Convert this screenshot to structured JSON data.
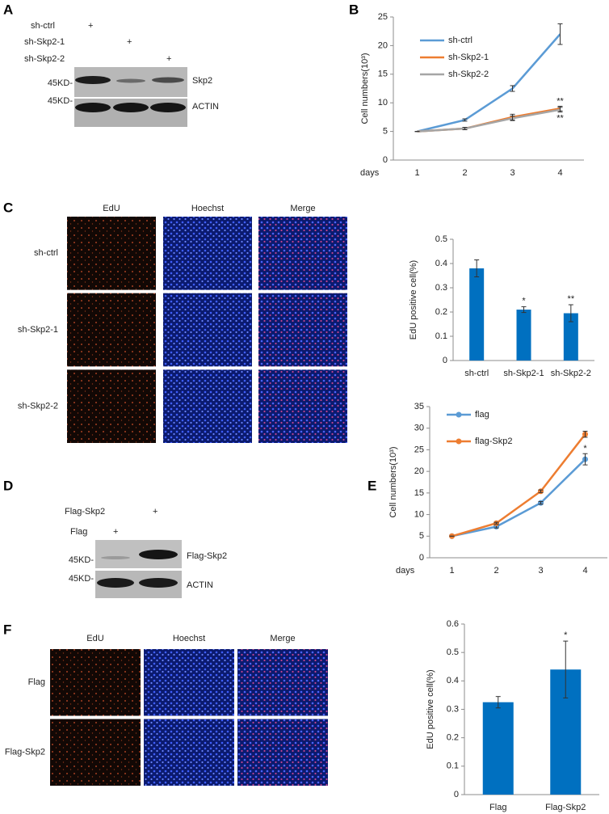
{
  "panel_labels": [
    "A",
    "B",
    "C",
    "D",
    "E",
    "F"
  ],
  "blot_a": {
    "conditions": [
      {
        "label": "sh-ctrl",
        "mark": "+"
      },
      {
        "label": "sh-Skp2-1",
        "mark": "+"
      },
      {
        "label": "sh-Skp2-2",
        "mark": "+"
      }
    ],
    "bands": [
      {
        "size": "45KD-",
        "protein": "Skp2"
      },
      {
        "size": "45KD-",
        "protein": "ACTIN"
      }
    ]
  },
  "micrographs_c": {
    "columns": [
      "EdU",
      "Hoechst",
      "Merge"
    ],
    "rows": [
      "sh-ctrl",
      "sh-Skp2-1",
      "sh-Skp2-2"
    ]
  },
  "blot_d": {
    "conditions": [
      {
        "label": "Flag-Skp2",
        "mark": "+"
      },
      {
        "label": "Flag",
        "mark": "+"
      }
    ],
    "bands": [
      {
        "size": "45KD-",
        "protein": "Flag-Skp2"
      },
      {
        "size": "45KD-",
        "protein": "ACTIN"
      }
    ]
  },
  "micrographs_f": {
    "columns": [
      "EdU",
      "Hoechst",
      "Merge"
    ],
    "rows": [
      "Flag",
      "Flag-Skp2"
    ]
  },
  "chart_data": [
    {
      "type": "line",
      "x_label": "days",
      "y_label": "Cell numbers(10³)",
      "categories": [
        "1",
        "2",
        "3",
        "4"
      ],
      "series": [
        {
          "name": "sh-ctrl",
          "color": "#5b9bd5",
          "values": [
            5,
            7,
            12.5,
            22
          ],
          "errors": [
            0,
            0.2,
            0.5,
            1.8
          ],
          "significance": [
            null,
            null,
            null,
            null
          ]
        },
        {
          "name": "sh-Skp2-1",
          "color": "#ed7d31",
          "values": [
            5,
            5.5,
            7.5,
            9
          ],
          "errors": [
            0,
            0.2,
            0.5,
            0.4
          ],
          "significance": [
            null,
            null,
            null,
            "**"
          ]
        },
        {
          "name": "sh-Skp2-2",
          "color": "#a5a5a5",
          "values": [
            5,
            5.5,
            7.3,
            8.8
          ],
          "errors": [
            0,
            0.2,
            0.4,
            0.4
          ],
          "significance": [
            null,
            null,
            null,
            "**"
          ]
        }
      ],
      "ylim": [
        0,
        25
      ],
      "yticks": [
        0,
        5,
        10,
        15,
        20,
        25
      ],
      "grid": false,
      "legend": "upper left",
      "markers": false
    },
    {
      "type": "bar",
      "y_label": "EdU positive cell(%)",
      "categories": [
        "sh-ctrl",
        "sh-Skp2-1",
        "sh-Skp2-2"
      ],
      "values": [
        0.38,
        0.21,
        0.195
      ],
      "errors": [
        0.035,
        0.012,
        0.035
      ],
      "significance": [
        null,
        "*",
        "**"
      ],
      "color": "#0070c0",
      "ylim": [
        0,
        0.5
      ],
      "yticks": [
        0,
        0.1,
        0.2,
        0.3,
        0.4,
        0.5
      ],
      "grid": false
    },
    {
      "type": "line",
      "x_label": "days",
      "y_label": "Cell numbers(10³)",
      "categories": [
        "1",
        "2",
        "3",
        "4"
      ],
      "series": [
        {
          "name": "flag",
          "color": "#5b9bd5",
          "values": [
            5,
            7.2,
            12.7,
            22.8
          ],
          "errors": [
            0,
            0.3,
            0.3,
            1.3
          ],
          "significance": [
            null,
            null,
            null,
            "*"
          ]
        },
        {
          "name": "flag-Skp2",
          "color": "#ed7d31",
          "values": [
            5,
            8,
            15.4,
            28.6
          ],
          "errors": [
            0,
            0.2,
            0.3,
            0.7
          ],
          "significance": [
            null,
            null,
            null,
            null
          ]
        }
      ],
      "ylim": [
        0,
        35
      ],
      "yticks": [
        0,
        5,
        10,
        15,
        20,
        25,
        30,
        35
      ],
      "grid": false,
      "legend": "upper left",
      "markers": true
    },
    {
      "type": "bar",
      "y_label": "EdU positive cell(%)",
      "categories": [
        "Flag",
        "Flag-Skp2"
      ],
      "values": [
        0.325,
        0.44
      ],
      "errors": [
        0.02,
        0.1
      ],
      "significance": [
        null,
        "*"
      ],
      "color": "#0070c0",
      "ylim": [
        0,
        0.6
      ],
      "yticks": [
        0,
        0.1,
        0.2,
        0.3,
        0.4,
        0.5,
        0.6
      ],
      "grid": false
    }
  ]
}
